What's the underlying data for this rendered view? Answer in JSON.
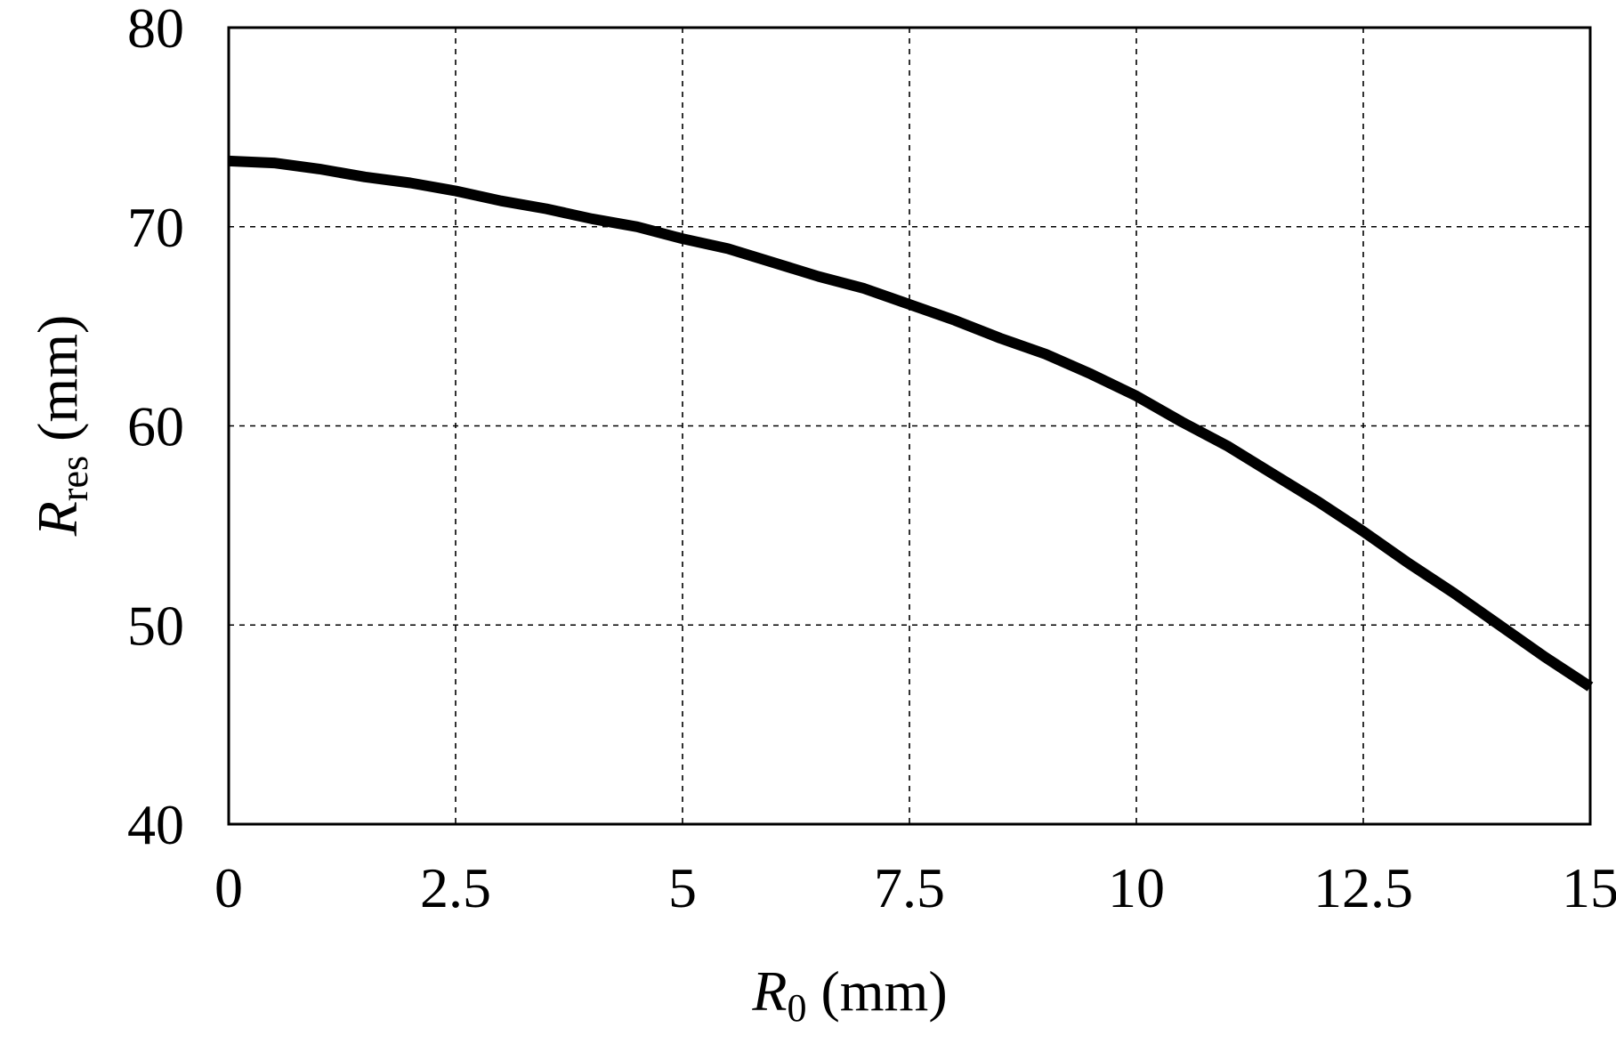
{
  "chart_data": {
    "type": "line",
    "title": "",
    "xlabel": {
      "symbol": "R",
      "subscript": "0",
      "unit": " (mm)"
    },
    "ylabel": {
      "symbol": "R",
      "subscript": "res",
      "unit": " (mm)"
    },
    "xlim": [
      0,
      15
    ],
    "ylim": [
      40,
      80
    ],
    "xticks": [
      0,
      2.5,
      5,
      7.5,
      10,
      12.5,
      15
    ],
    "xtick_labels": [
      "0",
      "2.5",
      "5",
      "7.5",
      "10",
      "12.5",
      "15"
    ],
    "yticks": [
      40,
      50,
      60,
      70,
      80
    ],
    "ytick_labels": [
      "40",
      "50",
      "60",
      "70",
      "80"
    ],
    "grid": true,
    "legend": "none",
    "series": [
      {
        "color": "#000000",
        "x": [
          0,
          0.5,
          1,
          1.5,
          2,
          2.5,
          3,
          3.5,
          4,
          4.5,
          5,
          5.5,
          6,
          6.5,
          7,
          7.5,
          8,
          8.5,
          9,
          9.5,
          10,
          10.5,
          11,
          11.5,
          12,
          12.5,
          13,
          13.5,
          14,
          14.5,
          15
        ],
        "y": [
          73.3,
          73.2,
          72.9,
          72.5,
          72.2,
          71.8,
          71.3,
          70.9,
          70.4,
          70.0,
          69.4,
          68.9,
          68.2,
          67.5,
          66.9,
          66.1,
          65.3,
          64.4,
          63.6,
          62.6,
          61.5,
          60.2,
          59.0,
          57.6,
          56.2,
          54.7,
          53.1,
          51.6,
          50.0,
          48.4,
          46.9
        ]
      }
    ]
  }
}
